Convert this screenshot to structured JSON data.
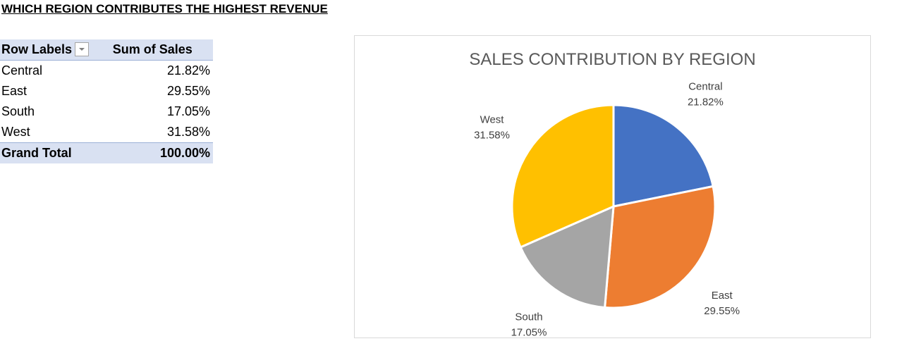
{
  "heading": "WHICH REGION CONTRIBUTES THE HIGHEST REVENUE",
  "pivot": {
    "col_row_labels": "Row Labels",
    "col_sum": "Sum of Sales",
    "rows": [
      {
        "label": "Central",
        "value": "21.82%"
      },
      {
        "label": "East",
        "value": "29.55%"
      },
      {
        "label": "South",
        "value": "17.05%"
      },
      {
        "label": "West",
        "value": "31.58%"
      }
    ],
    "total_label": "Grand Total",
    "total_value": "100.00%"
  },
  "chart_data": {
    "type": "pie",
    "title": "SALES CONTRIBUTION BY REGION",
    "categories": [
      "Central",
      "East",
      "South",
      "West"
    ],
    "values": [
      21.82,
      29.55,
      17.05,
      31.58
    ],
    "labels": [
      "21.82%",
      "29.55%",
      "17.05%",
      "31.58%"
    ],
    "colors": [
      "#4472c4",
      "#ed7d31",
      "#a5a5a5",
      "#ffc000"
    ],
    "start": "12 o'clock",
    "direction": "clockwise",
    "legend": "none"
  }
}
